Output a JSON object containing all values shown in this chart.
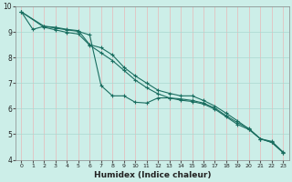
{
  "xlabel": "Humidex (Indice chaleur)",
  "background_color": "#cceee8",
  "grid_color_h": "#aad8d0",
  "grid_color_v": "#e8b8b8",
  "line_color": "#1a6e60",
  "xlim": [
    -0.5,
    23.5
  ],
  "ylim": [
    4,
    10
  ],
  "yticks": [
    4,
    5,
    6,
    7,
    8,
    9,
    10
  ],
  "xticks": [
    0,
    1,
    2,
    3,
    4,
    5,
    6,
    7,
    8,
    9,
    10,
    11,
    12,
    13,
    14,
    15,
    16,
    17,
    18,
    19,
    20,
    21,
    22,
    23
  ],
  "line1_x": [
    0,
    1,
    2,
    3,
    4,
    5,
    6,
    7,
    8,
    9,
    10,
    11,
    12,
    13,
    14,
    15,
    16,
    17,
    18,
    19,
    20,
    21,
    22,
    23
  ],
  "line1_y": [
    9.78,
    9.1,
    9.22,
    9.18,
    9.1,
    9.05,
    8.5,
    8.38,
    8.1,
    7.62,
    7.28,
    7.0,
    6.72,
    6.6,
    6.5,
    6.5,
    6.32,
    6.1,
    5.82,
    5.52,
    5.2,
    4.82,
    4.72,
    4.3
  ],
  "line2_x": [
    0,
    2,
    3,
    4,
    5,
    6,
    7,
    8,
    9,
    10,
    11,
    12,
    13,
    14,
    15,
    16,
    17,
    18,
    19,
    20,
    21,
    22,
    23
  ],
  "line2_y": [
    9.78,
    9.22,
    9.15,
    9.08,
    9.02,
    8.88,
    6.9,
    6.5,
    6.5,
    6.25,
    6.22,
    6.42,
    6.42,
    6.33,
    6.28,
    6.18,
    5.98,
    5.68,
    5.38,
    5.18,
    4.82,
    4.68,
    4.28
  ],
  "line3_x": [
    0,
    2,
    3,
    4,
    5,
    6,
    7,
    8,
    9,
    10,
    11,
    12,
    13,
    14,
    15,
    16,
    17,
    18,
    19,
    20,
    21,
    22,
    23
  ],
  "line3_y": [
    9.78,
    9.18,
    9.08,
    8.98,
    8.92,
    8.48,
    8.18,
    7.88,
    7.5,
    7.12,
    6.82,
    6.58,
    6.42,
    6.38,
    6.32,
    6.22,
    6.02,
    5.72,
    5.45,
    5.22,
    4.82,
    4.68,
    4.28
  ]
}
